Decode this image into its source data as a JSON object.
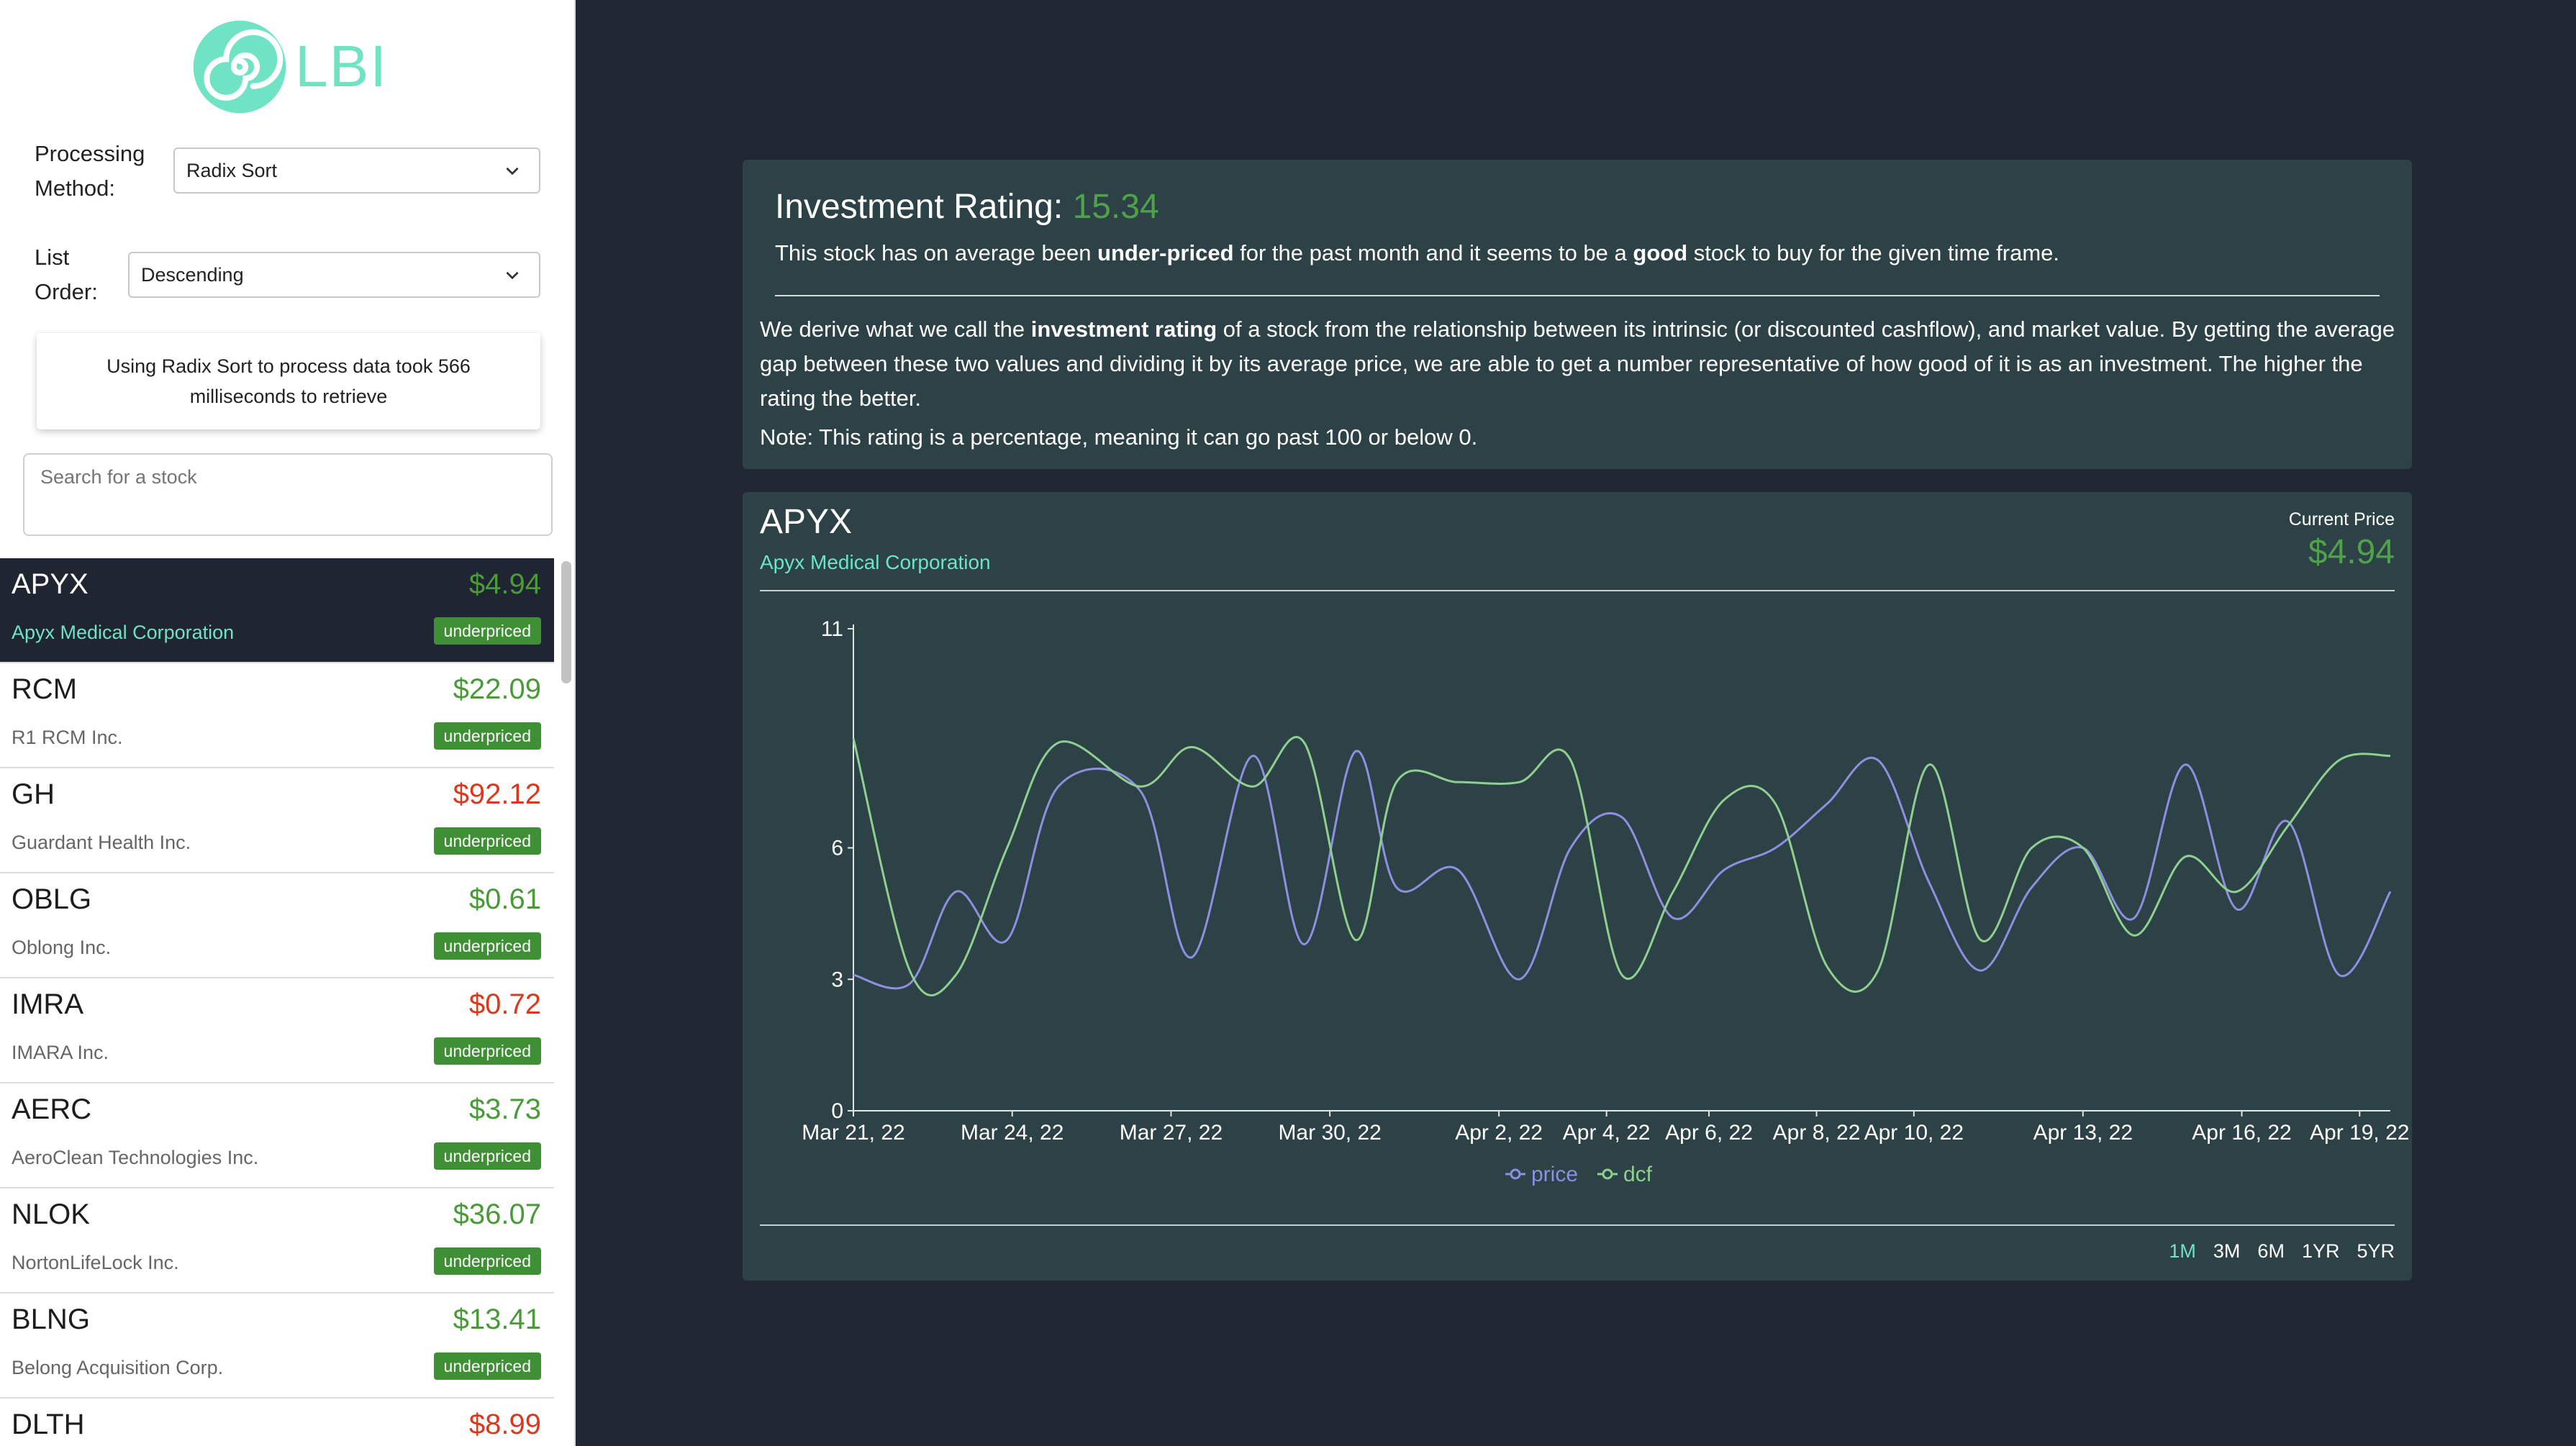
{
  "app": {
    "logo_text": "LBI",
    "accent": "#6fe3c4"
  },
  "controls": {
    "processing_label_line1": "Processing",
    "processing_label_line2": "Method:",
    "processing_value": "Radix Sort",
    "order_label_line1": "List",
    "order_label_line2": "Order:",
    "order_value": "Descending",
    "info_text": "Using Radix Sort to process data took 566 milliseconds to retrieve",
    "search_placeholder": "Search for a stock"
  },
  "stocks": [
    {
      "ticker": "APYX",
      "price": "$4.94",
      "price_color": "green",
      "company": "Apyx Medical Corporation",
      "badge": "underpriced",
      "selected": true
    },
    {
      "ticker": "RCM",
      "price": "$22.09",
      "price_color": "green",
      "company": "R1 RCM Inc.",
      "badge": "underpriced"
    },
    {
      "ticker": "GH",
      "price": "$92.12",
      "price_color": "red",
      "company": "Guardant Health Inc.",
      "badge": "underpriced"
    },
    {
      "ticker": "OBLG",
      "price": "$0.61",
      "price_color": "green",
      "company": "Oblong Inc.",
      "badge": "underpriced"
    },
    {
      "ticker": "IMRA",
      "price": "$0.72",
      "price_color": "red",
      "company": "IMARA Inc.",
      "badge": "underpriced"
    },
    {
      "ticker": "AERC",
      "price": "$3.73",
      "price_color": "green",
      "company": "AeroClean Technologies Inc.",
      "badge": "underpriced"
    },
    {
      "ticker": "NLOK",
      "price": "$36.07",
      "price_color": "green",
      "company": "NortonLifeLock Inc.",
      "badge": "underpriced"
    },
    {
      "ticker": "BLNG",
      "price": "$13.41",
      "price_color": "green",
      "company": "Belong Acquisition Corp.",
      "badge": "underpriced"
    },
    {
      "ticker": "DLTH",
      "price": "$8.99",
      "price_color": "red",
      "company": "",
      "badge": ""
    }
  ],
  "rating": {
    "title": "Investment Rating: ",
    "value": "15.34",
    "sub_1": "This stock has on average been ",
    "sub_bold_1": "under-priced",
    "sub_2": " for the past month and it seems to be a ",
    "sub_bold_2": "good",
    "sub_3": " stock to buy for the given time frame.",
    "desc_1": "We derive what we call the ",
    "desc_bold": "investment rating",
    "desc_2": " of a stock from the relationship between its intrinsic (or discounted cashflow), and market value. By getting the average gap between these two values and dividing it by its average price, we are able to get a number representative of how good of it is as an investment. The higher the rating the better.",
    "note": "Note: This rating is a percentage, meaning it can go past 100 or below 0."
  },
  "chart_panel": {
    "ticker": "APYX",
    "company": "Apyx Medical Corporation",
    "current_price_label": "Current Price",
    "current_price": "$4.94",
    "ranges": [
      "1M",
      "3M",
      "6M",
      "1YR",
      "5YR"
    ],
    "active_range": "1M"
  },
  "chart_data": {
    "type": "line",
    "x_labels": [
      "Mar 21, 22",
      "Mar 24, 22",
      "Mar 27, 22",
      "Mar 30, 22",
      "Apr 2, 22",
      "Apr 4, 22",
      "Apr 6, 22",
      "Apr 8, 22",
      "Apr 10, 22",
      "Apr 13, 22",
      "Apr 16, 22",
      "Apr 19, 22"
    ],
    "y_ticks": [
      0,
      3,
      6,
      11
    ],
    "ylim": [
      0,
      11
    ],
    "legend_position": "bottom-center",
    "series": [
      {
        "name": "price",
        "color": "#8f8fe0",
        "values": [
          3.1,
          2.9,
          5.0,
          3.9,
          7.4,
          7.3,
          3.5,
          8.1,
          3.8,
          8.2,
          5.1,
          5.5,
          3.0,
          6.0,
          6.7,
          4.4,
          5.5,
          6.0,
          7.0,
          8.0,
          5.2,
          3.2,
          5.1,
          6.0,
          4.4,
          7.9,
          4.6,
          6.6,
          3.1,
          5.0
        ],
        "points_x": [
          0,
          0.55,
          1.0,
          1.5,
          2.0,
          2.8,
          3.3,
          3.9,
          4.4,
          4.9,
          5.3,
          5.9,
          6.5,
          7.0,
          7.5,
          8.0,
          8.5,
          9.0,
          9.5,
          10.0,
          10.5,
          11.0,
          11.5,
          12.0,
          12.5,
          13.0,
          13.5,
          14.0,
          14.5,
          15.0
        ]
      },
      {
        "name": "dcf",
        "color": "#8fcf8f",
        "values": [
          8.5,
          3.2,
          3.1,
          6.0,
          8.4,
          7.4,
          8.3,
          7.4,
          8.4,
          3.9,
          7.5,
          7.5,
          7.5,
          8.0,
          3.1,
          5.0,
          7.1,
          7.0,
          3.3,
          3.2,
          7.9,
          3.9,
          6.0,
          6.0,
          4.0,
          5.8,
          5.0,
          6.5,
          8.0,
          8.1
        ],
        "points_x": [
          0,
          0.55,
          1.0,
          1.5,
          2.0,
          2.8,
          3.3,
          3.9,
          4.4,
          4.9,
          5.3,
          5.9,
          6.5,
          7.0,
          7.5,
          8.0,
          8.5,
          9.0,
          9.5,
          10.0,
          10.5,
          11.0,
          11.5,
          12.0,
          12.5,
          13.0,
          13.5,
          14.0,
          14.5,
          15.0
        ]
      }
    ]
  }
}
